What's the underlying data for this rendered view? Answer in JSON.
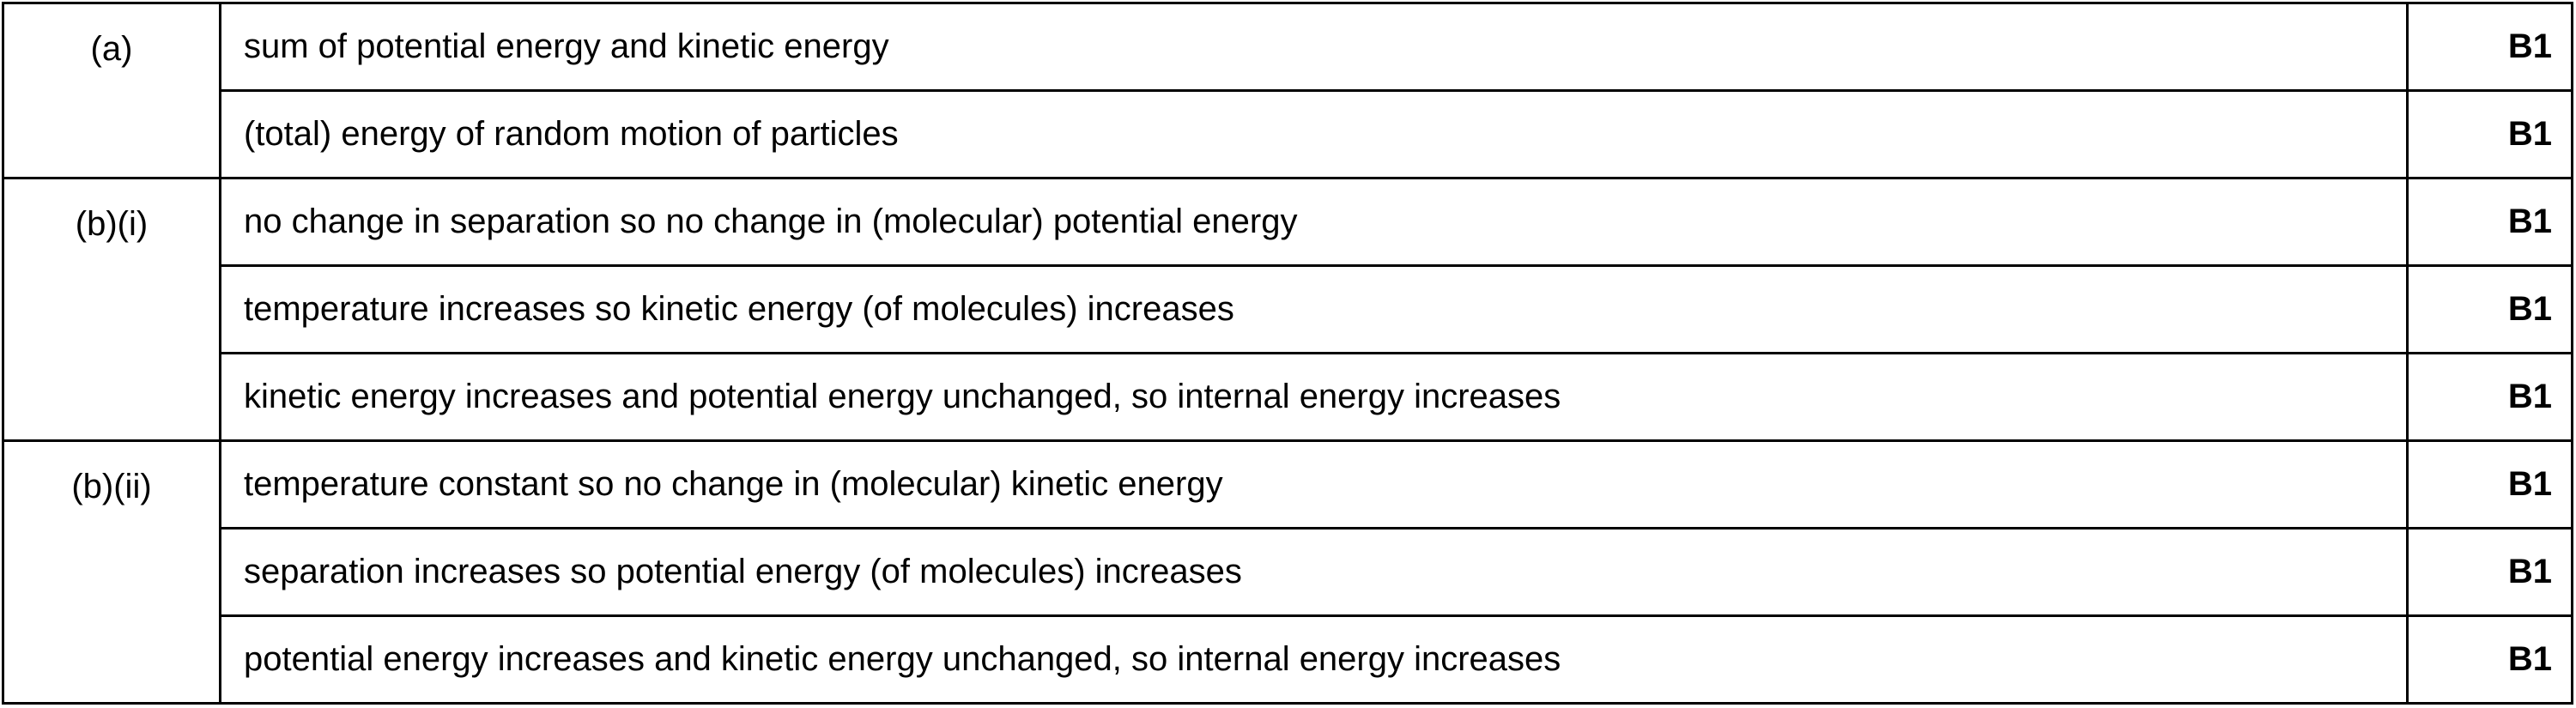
{
  "table": {
    "groups": [
      {
        "part": "(a)",
        "rows": [
          {
            "answer": "sum of potential energy and kinetic energy",
            "mark": "B1"
          },
          {
            "answer": "(total) energy of random motion of particles",
            "mark": "B1"
          }
        ]
      },
      {
        "part": "(b)(i)",
        "rows": [
          {
            "answer": "no change in separation so no change in (molecular) potential energy",
            "mark": "B1"
          },
          {
            "answer": "temperature increases so kinetic energy (of molecules) increases",
            "mark": "B1"
          },
          {
            "answer": "kinetic energy increases and potential energy unchanged, so internal energy increases",
            "mark": "B1"
          }
        ]
      },
      {
        "part": "(b)(ii)",
        "rows": [
          {
            "answer": "temperature constant so no change in (molecular) kinetic energy",
            "mark": "B1"
          },
          {
            "answer": "separation increases so potential energy (of molecules) increases",
            "mark": "B1"
          },
          {
            "answer": "potential energy increases and kinetic energy unchanged, so internal energy increases",
            "mark": "B1"
          }
        ]
      }
    ]
  }
}
